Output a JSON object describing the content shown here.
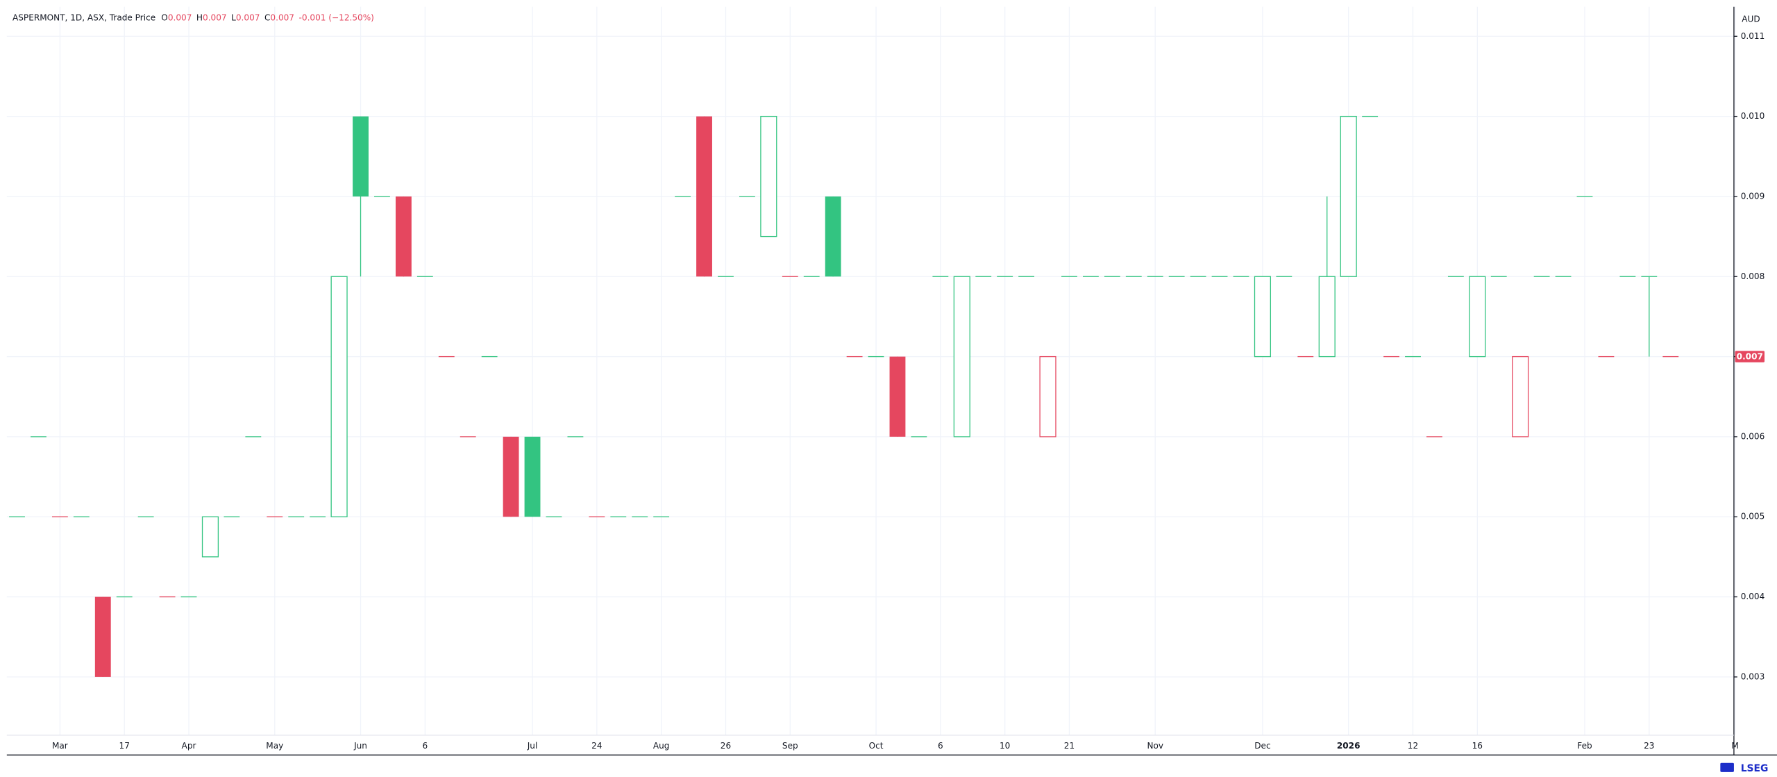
{
  "chart_data": {
    "type": "candlestick",
    "title": "ASPERMONT, 1D, ASX, Trade Price",
    "readout": [
      {
        "label": "O",
        "value": 0.007
      },
      {
        "label": "H",
        "value": 0.007
      },
      {
        "label": "L",
        "value": 0.007
      },
      {
        "label": "C",
        "value": 0.007
      }
    ],
    "change": "-0.001 (−12.50%)",
    "currency": "AUD",
    "up_color": "#33c481",
    "down_color": "#e5475f",
    "grid": true,
    "ylim": [
      0.00228,
      0.01134
    ],
    "yticks": [
      0.003,
      0.004,
      0.005,
      0.006,
      0.007,
      0.008,
      0.009,
      {
        "value": 0.01,
        "label": "0.010"
      },
      0.011
    ],
    "categories": [
      null,
      null,
      "Mar",
      null,
      null,
      "17",
      null,
      null,
      "Apr",
      null,
      null,
      null,
      "May",
      null,
      null,
      null,
      "Jun",
      null,
      null,
      "6",
      null,
      null,
      null,
      null,
      "Jul",
      null,
      null,
      "24",
      null,
      null,
      "Aug",
      null,
      null,
      "26",
      null,
      null,
      "Sep",
      null,
      null,
      null,
      "Oct",
      null,
      null,
      "6",
      null,
      null,
      "10",
      null,
      null,
      "21",
      null,
      null,
      null,
      "Nov",
      null,
      null,
      null,
      null,
      "Dec",
      null,
      null,
      null,
      "2026",
      null,
      null,
      "12",
      null,
      null,
      "16",
      null,
      null,
      null,
      null,
      "Feb",
      null,
      null,
      "23",
      null,
      null,
      null,
      "M"
    ],
    "open": [
      0.005,
      0.006,
      0.005,
      0.005,
      0.004,
      0.004,
      0.005,
      0.004,
      0.004,
      0.0045,
      0.005,
      0.006,
      0.005,
      0.005,
      0.005,
      0.005,
      0.01,
      0.009,
      0.009,
      0.008,
      0.007,
      0.006,
      0.007,
      0.006,
      0.006,
      0.005,
      0.006,
      0.005,
      0.005,
      0.005,
      0.005,
      0.009,
      0.01,
      0.008,
      0.009,
      0.0085,
      0.008,
      0.008,
      0.009,
      0.007,
      0.007,
      0.007,
      0.006,
      0.008,
      0.006,
      0.008,
      0.008,
      0.008,
      0.006,
      0.008,
      0.008,
      0.008,
      0.008,
      0.008,
      0.008,
      0.008,
      0.008,
      0.008,
      0.007,
      0.008,
      0.007,
      0.007,
      0.008,
      0.01,
      0.007,
      0.007,
      0.006,
      0.008,
      0.007,
      0.008,
      0.006,
      0.008,
      0.008,
      0.009,
      0.007,
      0.008,
      0.008,
      0.007,
      null,
      null,
      null
    ],
    "high": [
      0.005,
      0.006,
      0.005,
      0.005,
      0.004,
      0.004,
      0.005,
      0.004,
      0.004,
      0.005,
      0.005,
      0.006,
      0.005,
      0.005,
      0.005,
      0.008,
      0.01,
      0.009,
      0.009,
      0.008,
      0.007,
      0.006,
      0.007,
      0.006,
      0.006,
      0.005,
      0.006,
      0.005,
      0.005,
      0.005,
      0.005,
      0.009,
      0.01,
      0.008,
      0.009,
      0.01,
      0.008,
      0.008,
      0.009,
      0.007,
      0.007,
      0.007,
      0.006,
      0.008,
      0.008,
      0.008,
      0.008,
      0.008,
      0.007,
      0.008,
      0.008,
      0.008,
      0.008,
      0.008,
      0.008,
      0.008,
      0.008,
      0.008,
      0.008,
      0.008,
      0.007,
      0.009,
      0.01,
      0.01,
      0.007,
      0.007,
      0.006,
      0.008,
      0.008,
      0.008,
      0.007,
      0.008,
      0.008,
      0.009,
      0.007,
      0.008,
      0.008,
      0.007,
      null,
      null,
      null
    ],
    "low": [
      0.005,
      0.006,
      0.005,
      0.005,
      0.003,
      0.004,
      0.005,
      0.004,
      0.004,
      0.0045,
      0.005,
      0.006,
      0.005,
      0.005,
      0.005,
      0.005,
      0.008,
      0.009,
      0.008,
      0.008,
      0.007,
      0.006,
      0.007,
      0.005,
      0.005,
      0.005,
      0.006,
      0.005,
      0.005,
      0.005,
      0.005,
      0.009,
      0.008,
      0.008,
      0.009,
      0.0085,
      0.008,
      0.008,
      0.008,
      0.007,
      0.007,
      0.006,
      0.006,
      0.008,
      0.006,
      0.008,
      0.008,
      0.008,
      0.006,
      0.008,
      0.008,
      0.008,
      0.008,
      0.008,
      0.008,
      0.008,
      0.008,
      0.008,
      0.007,
      0.008,
      0.007,
      0.007,
      0.008,
      0.01,
      0.007,
      0.007,
      0.006,
      0.008,
      0.007,
      0.008,
      0.006,
      0.008,
      0.008,
      0.009,
      0.007,
      0.008,
      0.007,
      0.007,
      null,
      null,
      null
    ],
    "close": [
      0.005,
      0.006,
      0.005,
      0.005,
      0.003,
      0.004,
      0.005,
      0.004,
      0.004,
      0.005,
      0.005,
      0.006,
      0.005,
      0.005,
      0.005,
      0.008,
      0.009,
      0.009,
      0.008,
      0.008,
      0.007,
      0.006,
      0.007,
      0.005,
      0.005,
      0.005,
      0.006,
      0.005,
      0.005,
      0.005,
      0.005,
      0.009,
      0.008,
      0.008,
      0.009,
      0.01,
      0.008,
      0.008,
      0.008,
      0.007,
      0.007,
      0.006,
      0.006,
      0.008,
      0.008,
      0.008,
      0.008,
      0.008,
      0.007,
      0.008,
      0.008,
      0.008,
      0.008,
      0.008,
      0.008,
      0.008,
      0.008,
      0.008,
      0.008,
      0.008,
      0.007,
      0.008,
      0.01,
      0.01,
      0.007,
      0.007,
      0.006,
      0.008,
      0.008,
      0.008,
      0.007,
      0.008,
      0.008,
      0.009,
      0.007,
      0.008,
      0.008,
      0.007,
      null,
      null,
      null
    ]
  },
  "brand": "LSEG"
}
